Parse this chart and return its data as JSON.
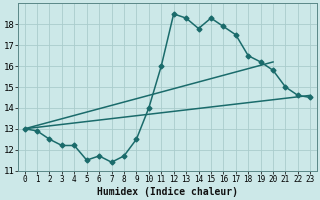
{
  "title": "",
  "xlabel": "Humidex (Indice chaleur)",
  "ylabel": "",
  "xlim": [
    -0.5,
    23.5
  ],
  "ylim": [
    11.0,
    19.0
  ],
  "yticks": [
    11,
    12,
    13,
    14,
    15,
    16,
    17,
    18
  ],
  "xticks": [
    0,
    1,
    2,
    3,
    4,
    5,
    6,
    7,
    8,
    9,
    10,
    11,
    12,
    13,
    14,
    15,
    16,
    17,
    18,
    19,
    20,
    21,
    22,
    23
  ],
  "bg_color": "#cce8e8",
  "grid_color": "#aacccc",
  "line_color": "#1a6b6b",
  "line1_x": [
    0,
    1,
    2,
    3,
    4,
    5,
    6,
    7,
    8,
    9,
    10,
    11,
    12,
    13,
    14,
    15,
    16,
    17,
    18,
    19,
    20,
    21,
    22,
    23
  ],
  "line1_y": [
    13.0,
    12.9,
    12.5,
    12.2,
    12.2,
    11.5,
    11.7,
    11.4,
    11.7,
    12.5,
    14.0,
    16.0,
    18.5,
    18.3,
    17.8,
    18.3,
    17.9,
    17.5,
    16.5,
    16.2,
    15.8,
    15.0,
    14.6,
    14.5
  ],
  "line2_x": [
    0,
    23
  ],
  "line2_y": [
    13.0,
    14.6
  ],
  "line3_x": [
    0,
    20
  ],
  "line3_y": [
    13.0,
    16.2
  ],
  "xlabel_fontsize": 7,
  "tick_fontsize": 6.5,
  "line_width": 1.1,
  "marker_size": 2.5
}
